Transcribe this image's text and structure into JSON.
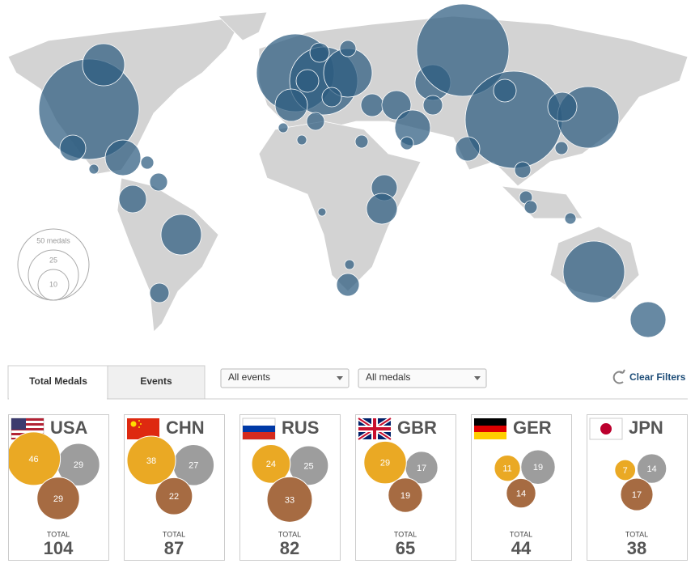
{
  "map_legend": [
    "50 medals",
    "25",
    "10"
  ],
  "tabs": [
    "Total Medals",
    "Events"
  ],
  "filters": [
    "All events",
    "All medals"
  ],
  "clear_filters": "Clear Filters",
  "total_label": "TOTAL",
  "medal_colors": {
    "gold": "#eaa924",
    "silver": "#9d9d9d",
    "bronze": "#a66b42"
  },
  "cards": [
    {
      "code": "USA",
      "gold": 46,
      "silver": 29,
      "bronze": 29,
      "total": 104
    },
    {
      "code": "CHN",
      "gold": 38,
      "silver": 27,
      "bronze": 22,
      "total": 87
    },
    {
      "code": "RUS",
      "gold": 24,
      "silver": 25,
      "bronze": 33,
      "total": 82
    },
    {
      "code": "GBR",
      "gold": 29,
      "silver": 17,
      "bronze": 19,
      "total": 65
    },
    {
      "code": "GER",
      "gold": 11,
      "silver": 19,
      "bronze": 14,
      "total": 44
    },
    {
      "code": "JPN",
      "gold": 7,
      "silver": 14,
      "bronze": 17,
      "total": 38
    }
  ]
}
